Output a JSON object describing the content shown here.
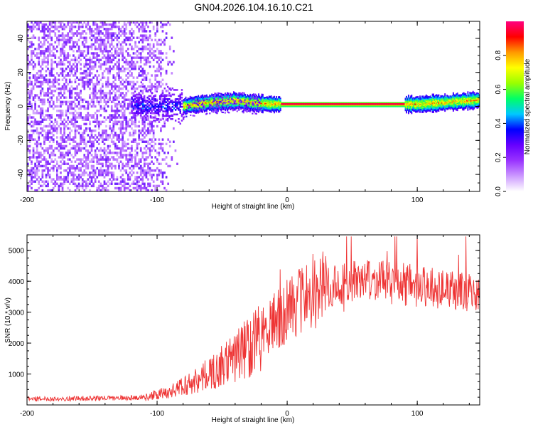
{
  "figure": {
    "title": "GN04.2026.104.16.10.C21"
  },
  "chart_data": [
    {
      "type": "heatmap",
      "xlabel": "Height of straight line (km)",
      "ylabel": "Frequency (Hz)",
      "xlim": [
        -200,
        148
      ],
      "ylim": [
        -50,
        50
      ],
      "xticks": [
        -200,
        -100,
        0,
        100
      ],
      "xtick_labels": [
        "-200",
        "-100",
        "0",
        "100"
      ],
      "yticks": [
        -40,
        -20,
        0,
        20,
        40
      ],
      "ytick_labels": [
        "-40",
        "-20",
        "0",
        "20",
        "40"
      ],
      "colorbar": {
        "label": "Normalized spectral amplitude",
        "range": [
          0,
          1
        ],
        "ticks": [
          0,
          0.2,
          0.4,
          0.6,
          0.8
        ],
        "tick_labels": [
          "0.0",
          "0.2",
          "0.4",
          "0.6",
          "0.8"
        ],
        "colors": [
          "#ffffff",
          "#cc99ff",
          "#9933ff",
          "#6600ff",
          "#0000ff",
          "#00c8ff",
          "#00ff66",
          "#99ff00",
          "#ffff00",
          "#ff9900",
          "#ff0000",
          "#ff0080"
        ]
      },
      "regions": [
        {
          "description": "broadband noise",
          "x_from": -200,
          "x_to": -85,
          "freq_range": [
            -50,
            50
          ]
        },
        {
          "description": "transition",
          "x_from": -120,
          "x_to": -80,
          "freq_range": [
            -15,
            15
          ]
        },
        {
          "description": "narrow line",
          "x_from": -80,
          "x_to": 148,
          "center_freq": 0
        }
      ],
      "ridge": [
        {
          "x": -80,
          "f": 0.0
        },
        {
          "x": -60,
          "f": 2.0
        },
        {
          "x": -40,
          "f": 3.0
        },
        {
          "x": -20,
          "f": 1.5
        },
        {
          "x": -10,
          "f": 1.0
        },
        {
          "x": 0,
          "f": 1.0
        },
        {
          "x": 60,
          "f": 1.0
        },
        {
          "x": 100,
          "f": 1.0
        },
        {
          "x": 120,
          "f": 2.0
        },
        {
          "x": 148,
          "f": 3.5
        }
      ]
    },
    {
      "type": "line",
      "xlabel": "Height of straight line (km)",
      "ylabel": "SNR (10 * v/v)",
      "xlim": [
        -200,
        148
      ],
      "ylim": [
        0,
        5500
      ],
      "xticks": [
        -200,
        -100,
        0,
        100
      ],
      "xtick_labels": [
        "-200",
        "-100",
        "0",
        "100"
      ],
      "yticks": [
        1000,
        2000,
        3000,
        4000,
        5000
      ],
      "ytick_labels": [
        "1000",
        "2000",
        "3000",
        "4000",
        "5000"
      ],
      "color": "#ee3333",
      "series": [
        {
          "name": "SNR",
          "x": [
            -200,
            -180,
            -160,
            -140,
            -120,
            -110,
            -100,
            -90,
            -80,
            -70,
            -60,
            -50,
            -40,
            -30,
            -20,
            -10,
            0,
            10,
            20,
            30,
            40,
            50,
            60,
            70,
            80,
            90,
            100,
            110,
            120,
            130,
            140,
            148
          ],
          "y": [
            200,
            200,
            210,
            220,
            230,
            260,
            320,
            430,
            600,
            800,
            1000,
            1250,
            1550,
            1900,
            2300,
            2700,
            3050,
            3400,
            3650,
            3800,
            3900,
            4000,
            4000,
            3980,
            3950,
            3900,
            3850,
            3800,
            3750,
            3700,
            3650,
            3600
          ]
        }
      ]
    }
  ]
}
